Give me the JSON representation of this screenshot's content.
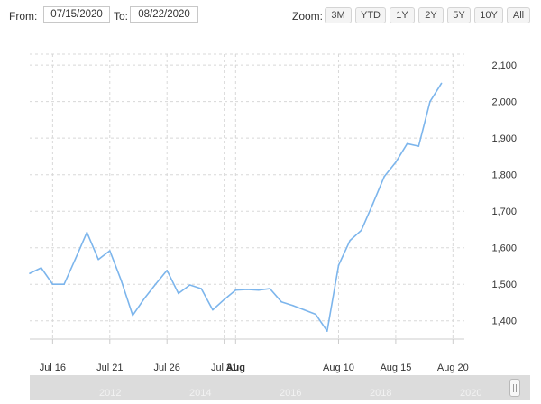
{
  "range_selector": {
    "from_label": "From:",
    "from_value": "07/15/2020",
    "to_label": "To:",
    "to_value": "08/22/2020",
    "zoom_label": "Zoom:",
    "zoom_buttons": [
      "3M",
      "YTD",
      "1Y",
      "2Y",
      "5Y",
      "10Y",
      "All"
    ]
  },
  "navigator": {
    "years": [
      "2012",
      "2014",
      "2016",
      "2018",
      "2020"
    ]
  },
  "chart_data": {
    "type": "line",
    "title": "",
    "xlabel": "",
    "ylabel": "",
    "x_range": [
      "2020-07-14",
      "2020-08-21"
    ],
    "ylim": [
      1350,
      2130
    ],
    "yticks": [
      1400,
      1500,
      1600,
      1700,
      1800,
      1900,
      2000,
      2100
    ],
    "ytick_labels": [
      "1,400",
      "1,500",
      "1,600",
      "1,700",
      "1,800",
      "1,900",
      "2,000",
      "2,100"
    ],
    "xticks": [
      "2020-07-16",
      "2020-07-21",
      "2020-07-26",
      "2020-07-31",
      "2020-08-01",
      "2020-08-10",
      "2020-08-15",
      "2020-08-20"
    ],
    "xtick_labels": [
      "Jul 16",
      "Jul 21",
      "Jul 26",
      "Jul 31",
      "Aug",
      "Aug 10",
      "Aug 15",
      "Aug 20"
    ],
    "bold_xtick": "Aug",
    "grid": "dashed, both axes",
    "color": "#7cb5ec",
    "series": [
      {
        "x": [
          "2020-07-14",
          "2020-07-15",
          "2020-07-16",
          "2020-07-17",
          "2020-07-18",
          "2020-07-19",
          "2020-07-20",
          "2020-07-21",
          "2020-07-22",
          "2020-07-23",
          "2020-07-24",
          "2020-07-25",
          "2020-07-26",
          "2020-07-27",
          "2020-07-28",
          "2020-07-29",
          "2020-07-30",
          "2020-07-31",
          "2020-08-01",
          "2020-08-02",
          "2020-08-03",
          "2020-08-04",
          "2020-08-05",
          "2020-08-06",
          "2020-08-07",
          "2020-08-08",
          "2020-08-09",
          "2020-08-10",
          "2020-08-11",
          "2020-08-12",
          "2020-08-13",
          "2020-08-14",
          "2020-08-15",
          "2020-08-16",
          "2020-08-17",
          "2020-08-18",
          "2020-08-19",
          "2020-08-20",
          "2020-08-21"
        ],
        "y": [
          1530,
          1545,
          1500,
          1500,
          1570,
          1642,
          1568,
          1592,
          1510,
          1415,
          1460,
          1500,
          1538,
          1475,
          1498,
          1488,
          1430,
          1458,
          1484,
          1486,
          1484,
          1488,
          1452,
          1442,
          1430,
          1418,
          1372,
          1552,
          1620,
          1648,
          1720,
          1795,
          1834,
          1885,
          1878,
          2000,
          2050,
          null,
          null
        ]
      }
    ]
  }
}
